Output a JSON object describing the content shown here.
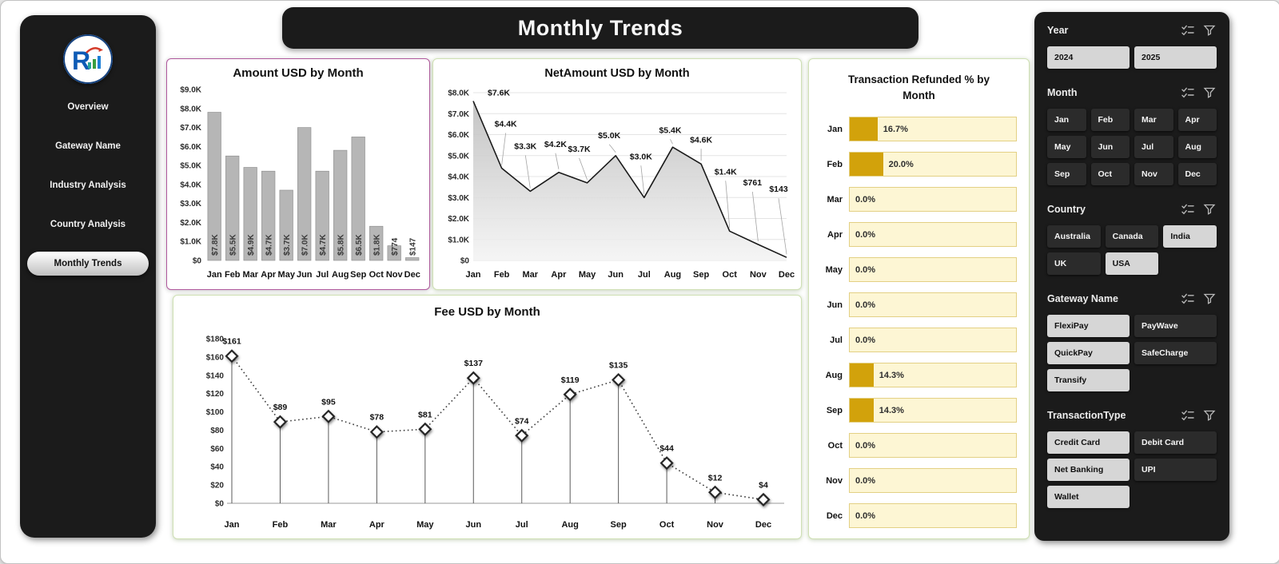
{
  "header": {
    "title": "Monthly Trends"
  },
  "sidebar": {
    "items": [
      {
        "label": "Overview",
        "active": false
      },
      {
        "label": "Gateway Name",
        "active": false
      },
      {
        "label": "Industry Analysis",
        "active": false
      },
      {
        "label": "Country Analysis",
        "active": false
      },
      {
        "label": "Monthly Trends",
        "active": true
      }
    ]
  },
  "chart_data": [
    {
      "type": "bar",
      "title": "Amount USD by Month",
      "categories": [
        "Jan",
        "Feb",
        "Mar",
        "Apr",
        "May",
        "Jun",
        "Jul",
        "Aug",
        "Sep",
        "Oct",
        "Nov",
        "Dec"
      ],
      "values": [
        7800,
        5500,
        4900,
        4700,
        3700,
        7000,
        4700,
        5800,
        6500,
        1800,
        774,
        147
      ],
      "labels": [
        "$7.8K",
        "$5.5K",
        "$4.9K",
        "$4.7K",
        "$3.7K",
        "$7.0K",
        "$4.7K",
        "$5.8K",
        "$6.5K",
        "$1.8K",
        "$774",
        "$147"
      ],
      "ylim": [
        0,
        9000
      ],
      "ytick_labels": [
        "$0",
        "$1.0K",
        "$2.0K",
        "$3.0K",
        "$4.0K",
        "$5.0K",
        "$6.0K",
        "$7.0K",
        "$8.0K",
        "$9.0K"
      ],
      "xlabel": "",
      "ylabel": "",
      "grid": false,
      "legend": "none"
    },
    {
      "type": "area",
      "title": "NetAmount USD by Month",
      "categories": [
        "Jan",
        "Feb",
        "Mar",
        "Apr",
        "May",
        "Jun",
        "Jul",
        "Aug",
        "Sep",
        "Oct",
        "Nov",
        "Dec"
      ],
      "values": [
        7600,
        4400,
        3300,
        4200,
        3700,
        5000,
        3000,
        5400,
        4600,
        1400,
        761,
        143
      ],
      "labels": [
        "$7.6K",
        "$4.4K",
        "$3.3K",
        "$4.2K",
        "$3.7K",
        "$5.0K",
        "$3.0K",
        "$5.4K",
        "$4.6K",
        "$1.4K",
        "$761",
        "$143"
      ],
      "ylim": [
        0,
        8000
      ],
      "ytick_labels": [
        "$0",
        "$1.0K",
        "$2.0K",
        "$3.0K",
        "$4.0K",
        "$5.0K",
        "$6.0K",
        "$7.0K",
        "$8.0K"
      ],
      "xlabel": "",
      "ylabel": "",
      "grid": true,
      "legend": "none"
    },
    {
      "type": "line",
      "title": "Fee USD by Month",
      "categories": [
        "Jan",
        "Feb",
        "Mar",
        "Apr",
        "May",
        "Jun",
        "Jul",
        "Aug",
        "Sep",
        "Oct",
        "Nov",
        "Dec"
      ],
      "values": [
        161,
        89,
        95,
        78,
        81,
        137,
        74,
        119,
        135,
        44,
        12,
        4
      ],
      "labels": [
        "$161",
        "$89",
        "$95",
        "$78",
        "$81",
        "$137",
        "$74",
        "$119",
        "$135",
        "$44",
        "$12",
        "$4"
      ],
      "ylim": [
        0,
        180
      ],
      "ytick_labels": [
        "$0",
        "$20",
        "$40",
        "$60",
        "$80",
        "$100",
        "$120",
        "$140",
        "$160",
        "$180"
      ],
      "xlabel": "",
      "ylabel": "",
      "grid": false,
      "legend": "none"
    },
    {
      "type": "bar",
      "orientation": "horizontal",
      "title": "Transaction Refunded % by Month",
      "categories": [
        "Jan",
        "Feb",
        "Mar",
        "Apr",
        "May",
        "Jun",
        "Jul",
        "Aug",
        "Sep",
        "Oct",
        "Nov",
        "Dec"
      ],
      "values": [
        16.7,
        20.0,
        0,
        0,
        0,
        0,
        0,
        14.3,
        14.3,
        0,
        0,
        0
      ],
      "labels": [
        "16.7%",
        "20.0%",
        "0.0%",
        "0.0%",
        "0.0%",
        "0.0%",
        "0.0%",
        "14.3%",
        "14.3%",
        "0.0%",
        "0.0%",
        "0.0%"
      ],
      "xlim": [
        0,
        100
      ],
      "xlabel": "",
      "ylabel": "",
      "grid": false,
      "legend": "none"
    }
  ],
  "filters": {
    "sections": [
      {
        "label": "Year",
        "cols": 2,
        "items": [
          {
            "label": "2024",
            "selected": true
          },
          {
            "label": "2025",
            "selected": true
          }
        ]
      },
      {
        "label": "Month",
        "cols": 4,
        "items": [
          {
            "label": "Jan",
            "selected": false
          },
          {
            "label": "Feb",
            "selected": false
          },
          {
            "label": "Mar",
            "selected": false
          },
          {
            "label": "Apr",
            "selected": false
          },
          {
            "label": "May",
            "selected": false
          },
          {
            "label": "Jun",
            "selected": false
          },
          {
            "label": "Jul",
            "selected": false
          },
          {
            "label": "Aug",
            "selected": false
          },
          {
            "label": "Sep",
            "selected": false
          },
          {
            "label": "Oct",
            "selected": false
          },
          {
            "label": "Nov",
            "selected": false
          },
          {
            "label": "Dec",
            "selected": false
          }
        ]
      },
      {
        "label": "Country",
        "cols": 3,
        "items": [
          {
            "label": "Australia",
            "selected": false
          },
          {
            "label": "Canada",
            "selected": false
          },
          {
            "label": "India",
            "selected": true
          },
          {
            "label": "UK",
            "selected": false
          },
          {
            "label": "USA",
            "selected": true
          }
        ]
      },
      {
        "label": "Gateway Name",
        "cols": 2,
        "items": [
          {
            "label": "FlexiPay",
            "selected": true
          },
          {
            "label": "PayWave",
            "selected": false
          },
          {
            "label": "QuickPay",
            "selected": true
          },
          {
            "label": "SafeCharge",
            "selected": false
          },
          {
            "label": "Transify",
            "selected": true
          }
        ]
      },
      {
        "label": "TransactionType",
        "cols": 2,
        "items": [
          {
            "label": "Credit Card",
            "selected": true
          },
          {
            "label": "Debit Card",
            "selected": false
          },
          {
            "label": "Net Banking",
            "selected": true
          },
          {
            "label": "UPI",
            "selected": false
          },
          {
            "label": "Wallet",
            "selected": true
          }
        ]
      }
    ]
  },
  "colors": {
    "panel_bg": "#1b1b1b",
    "bar_fill": "#b6b6b6",
    "bar_stroke": "#8a8a8a",
    "line_color": "#1a1a1a",
    "refund_fill": "#d2a20b",
    "refund_track": "#fdf6d4",
    "card_border_green": "#cfe0b4",
    "card_border_purple": "#b0589d",
    "button_light": "#d6d6d6",
    "button_dark": "#2b2b2b"
  }
}
